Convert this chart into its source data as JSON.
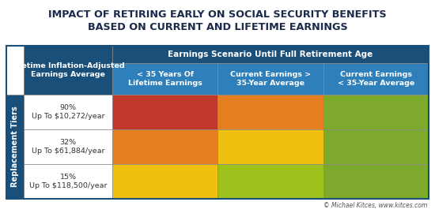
{
  "title_line1": "IMPACT OF RETIRING EARLY ON SOCIAL SECURITY BENEFITS",
  "title_line2": "BASED ON CURRENT AND LIFETIME EARNINGS",
  "title_color": "#1b2a4a",
  "title_fontsize": 9.2,
  "bg_color": "#ffffff",
  "header_top_color": "#1a4f7a",
  "header_sub_color": "#2e7fba",
  "row_header_color": "#1a4f7a",
  "col_header_top_text": "Earnings Scenario Until Full Retirement Age",
  "col_headers": [
    "< 35 Years Of\nLifetime Earnings",
    "Current Earnings >\n35-Year Average",
    "Current Earnings\n< 35-Year Average"
  ],
  "row_header_label": "Replacement Tiers",
  "row_header_sub": "Lifetime Inflation-Adjusted\nEarnings Average",
  "row_labels": [
    "90%\nUp To $10,272/year",
    "32%\nUp To $61,884/year",
    "15%\nUp To $118,500/year"
  ],
  "cell_colors": [
    [
      "#c0392b",
      "#e67e22",
      "#7daa2d"
    ],
    [
      "#e67e22",
      "#f0c010",
      "#7daa2d"
    ],
    [
      "#f0c010",
      "#9dc21c",
      "#7daa2d"
    ]
  ],
  "copyright_text": "© Michael Kitces, www.kitces.com",
  "copyright_color": "#555555",
  "border_color": "#888888",
  "header_text_color": "#ffffff",
  "row_label_color": "#333333",
  "outer_border_color": "#bbbbbb",
  "fig_border_color": "#1a4f7a"
}
